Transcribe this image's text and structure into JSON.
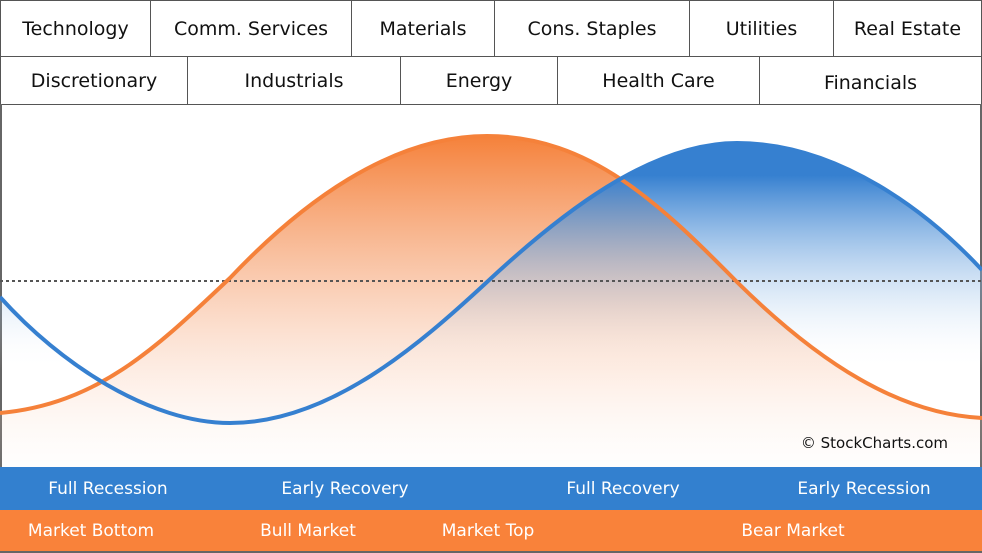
{
  "sectors_row1": [
    "Technology",
    "Comm. Services",
    "Materials",
    "Cons. Staples",
    "Utilities",
    "Real Estate"
  ],
  "sectors_row2": [
    "Discretionary",
    "Industrials",
    "Energy",
    "Health Care",
    "Financials"
  ],
  "economy_phases": [
    "Full Recession",
    "Early Recovery",
    "Full Recovery",
    "Early Recession"
  ],
  "market_phases": [
    "Market Bottom",
    "Bull Market",
    "Market Top",
    "Bear Market"
  ],
  "copyright": "© StockCharts.com",
  "colors": {
    "market_curve": "#f5813a",
    "economy_curve": "#3680d0",
    "economy_band": "#3380cf",
    "market_band": "#f9823a"
  }
}
